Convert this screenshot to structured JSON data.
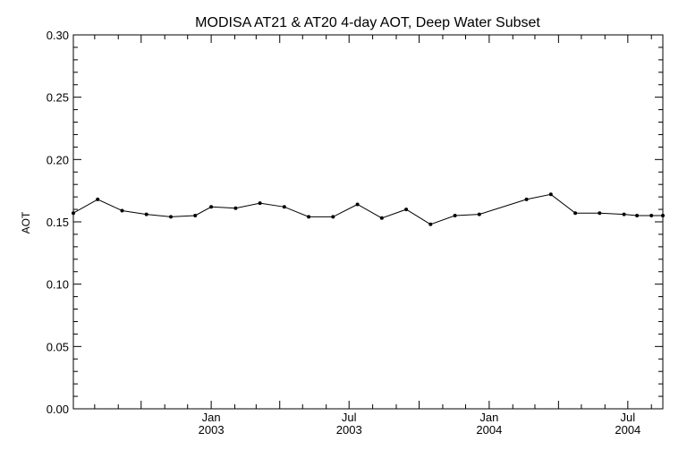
{
  "chart_data": {
    "type": "line",
    "title": "MODISA AT21 & AT20 4-day AOT, Deep Water Subset",
    "xlabel": "",
    "ylabel": "AOT",
    "xlim": [
      "2002-07-04",
      "2004-08-16"
    ],
    "ylim": [
      0.0,
      0.3
    ],
    "yticks": [
      0.0,
      0.05,
      0.1,
      0.15,
      0.2,
      0.25,
      0.3
    ],
    "ytick_labels": [
      "0.00",
      "0.05",
      "0.10",
      "0.15",
      "0.20",
      "0.25",
      "0.30"
    ],
    "xticks": [
      {
        "date": "2003-01-01",
        "month": "Jan",
        "year": "2003"
      },
      {
        "date": "2003-07-01",
        "month": "Jul",
        "year": "2003"
      },
      {
        "date": "2004-01-01",
        "month": "Jan",
        "year": "2004"
      },
      {
        "date": "2004-07-01",
        "month": "Jul",
        "year": "2004"
      }
    ],
    "grid": false,
    "series": [
      {
        "x": [
          "2002-07-04",
          "2002-08-05",
          "2002-09-06",
          "2002-10-08",
          "2002-11-09",
          "2002-12-11",
          "2003-01-01",
          "2003-02-02",
          "2003-03-06",
          "2003-04-07",
          "2003-05-09",
          "2003-06-10",
          "2003-07-12",
          "2003-08-13",
          "2003-09-14",
          "2003-10-16",
          "2003-11-17",
          "2003-12-19",
          "2004-02-19",
          "2004-03-22",
          "2004-04-23",
          "2004-05-25",
          "2004-06-26",
          "2004-07-13",
          "2004-08-01",
          "2004-08-16"
        ],
        "values": [
          0.157,
          0.168,
          0.159,
          0.156,
          0.154,
          0.155,
          0.162,
          0.161,
          0.165,
          0.162,
          0.154,
          0.154,
          0.164,
          0.153,
          0.16,
          0.148,
          0.155,
          0.156,
          0.168,
          0.172,
          0.157,
          0.157,
          0.156,
          0.155,
          0.155,
          0.155
        ]
      }
    ]
  }
}
